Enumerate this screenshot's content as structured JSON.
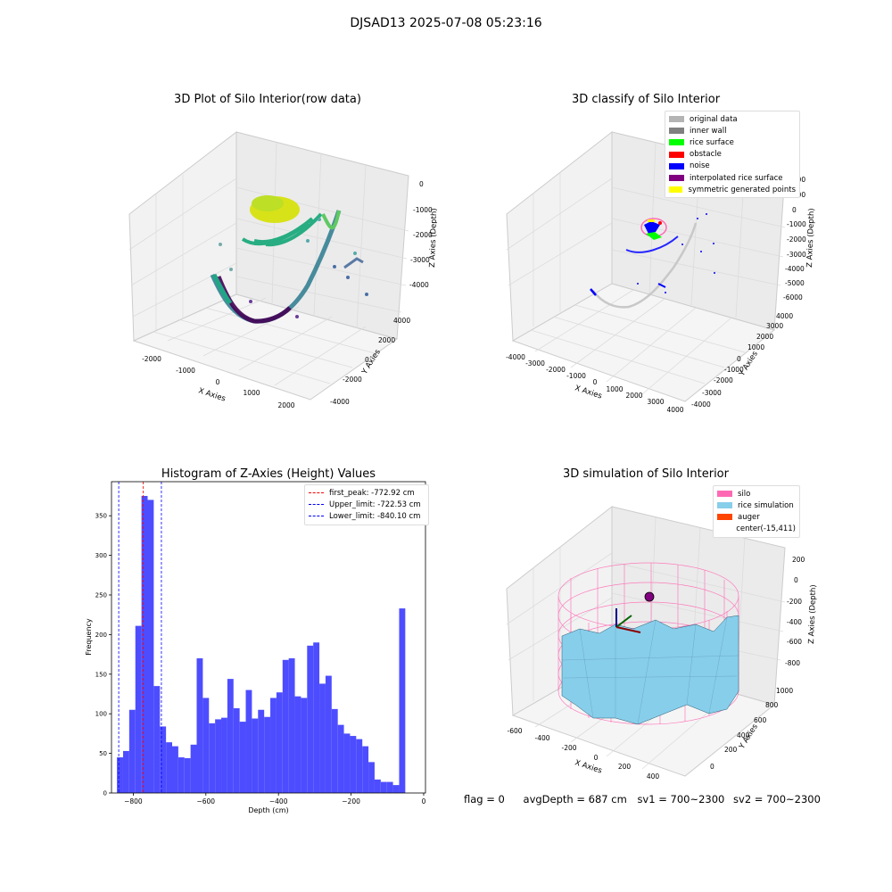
{
  "suptitle": "DJSAD13 2025-07-08 05:23:16",
  "panels": {
    "raw": {
      "title": "3D Plot of Silo Interior(row data)",
      "xlabel": "X Axies",
      "ylabel": "Y Axies",
      "zlabel": "Z Axies (Depth)",
      "xticks": [
        "-2000",
        "-1000",
        "0",
        "1000",
        "2000"
      ],
      "yticks": [
        "-4000",
        "-2000",
        "0",
        "2000",
        "4000"
      ],
      "zticks": [
        "0",
        "-1000",
        "-2000",
        "-3000",
        "-4000"
      ]
    },
    "classify": {
      "title": "3D classify of Silo Interior",
      "xlabel": "X Axies",
      "ylabel": "Y Axies",
      "zlabel": "Z Axies (Depth)",
      "xticks": [
        "-4000",
        "-3000",
        "-2000",
        "-1000",
        "0",
        "1000",
        "2000",
        "3000",
        "4000"
      ],
      "yticks": [
        "-4000",
        "-3000",
        "-2000",
        "-1000",
        "0",
        "1000",
        "2000",
        "3000",
        "4000"
      ],
      "zticks": [
        "2000",
        "1000",
        "0",
        "-1000",
        "-2000",
        "-3000",
        "-4000",
        "-5000",
        "-6000"
      ],
      "legend": [
        {
          "label": "original data",
          "color": "#b4b4b4"
        },
        {
          "label": "inner wall",
          "color": "#808080"
        },
        {
          "label": "rice surface",
          "color": "#00ff00"
        },
        {
          "label": "obstacle",
          "color": "#ff0000"
        },
        {
          "label": "noise",
          "color": "#0000ff"
        },
        {
          "label": "interpolated rice surface",
          "color": "#800080"
        },
        {
          "label": "symmetric generated points",
          "color": "#ffff00"
        }
      ]
    },
    "simulation": {
      "title": "3D simulation of Silo Interior",
      "xlabel": "X Axies",
      "ylabel": "Y Axies",
      "zlabel": "Z Axies (Depth)",
      "xticks": [
        "-600",
        "-400",
        "-200",
        "0",
        "200",
        "400"
      ],
      "yticks": [
        "0",
        "200",
        "400",
        "600",
        "800",
        "1000"
      ],
      "zticks": [
        "200",
        "0",
        "-200",
        "-400",
        "-600",
        "-800"
      ],
      "legend": [
        {
          "label": "silo",
          "color": "#ff69b4"
        },
        {
          "label": "rice simulation",
          "color": "#87ceeb"
        },
        {
          "label": "auger",
          "color": "#ff4500"
        },
        {
          "label": "center(-15,411)",
          "color": ""
        }
      ]
    }
  },
  "chart_data": {
    "type": "bar",
    "title": "Histogram of Z-Axies (Height) Values",
    "xlabel": "Depth (cm)",
    "ylabel": "Frequency",
    "xlim": [
      -860,
      5
    ],
    "ylim": [
      0,
      393
    ],
    "xticks": [
      -800,
      -600,
      -400,
      -200,
      0
    ],
    "yticks": [
      0,
      50,
      100,
      150,
      200,
      250,
      300,
      350
    ],
    "bar_color": "#4d4dff",
    "bin_start": -845,
    "bin_width": 16.9,
    "values": [
      45,
      53,
      105,
      211,
      375,
      370,
      135,
      84,
      64,
      59,
      45,
      44,
      61,
      170,
      120,
      88,
      93,
      95,
      144,
      107,
      90,
      130,
      94,
      105,
      96,
      120,
      127,
      168,
      170,
      122,
      120,
      186,
      190,
      138,
      148,
      106,
      86,
      75,
      72,
      68,
      59,
      39,
      17,
      14,
      14,
      10,
      233
    ],
    "lines": [
      {
        "label": "first_peak: -772.92 cm",
        "value": -772.92,
        "color": "#ff0000"
      },
      {
        "label": "Upper_limit: -722.53 cm",
        "value": -722.53,
        "color": "#0000ff"
      },
      {
        "label": "Lower_limit: -840.10 cm",
        "value": -840.1,
        "color": "#0000ff"
      }
    ]
  },
  "status": {
    "flag": "flag = 0",
    "avg": "avgDepth = 687 cm",
    "sv1": "sv1 = 700~2300",
    "sv2": "sv2 = 700~2300"
  }
}
